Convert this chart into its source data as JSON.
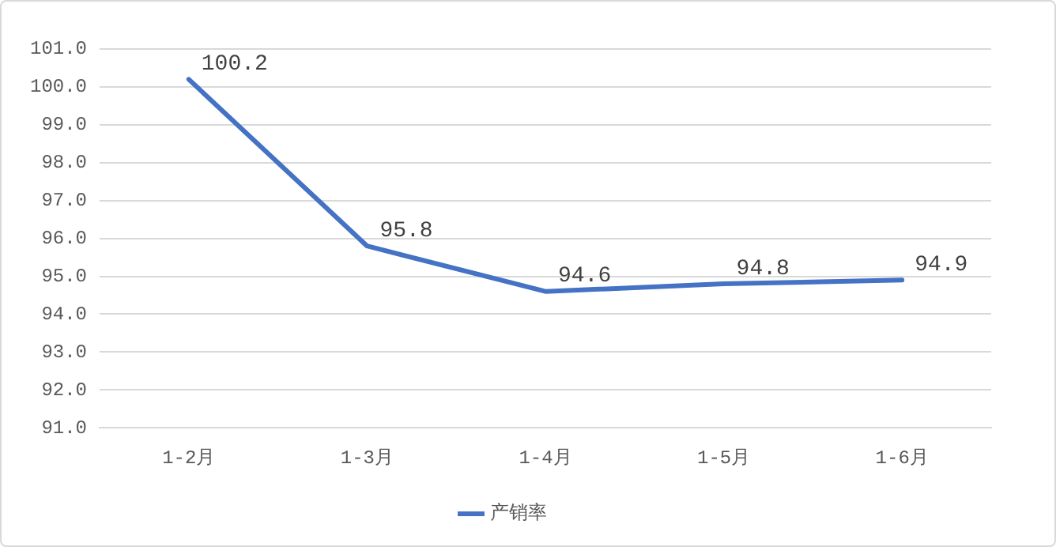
{
  "chart_data": {
    "type": "line",
    "categories": [
      "1-2月",
      "1-3月",
      "1-4月",
      "1-5月",
      "1-6月"
    ],
    "series": [
      {
        "name": "产销率",
        "color": "#4472c4",
        "values": [
          100.2,
          95.8,
          94.6,
          94.8,
          94.9
        ]
      }
    ],
    "ylim": [
      91,
      101
    ],
    "yticks": [
      {
        "value": 91,
        "label": "91.0"
      },
      {
        "value": 92,
        "label": "92.0"
      },
      {
        "value": 93,
        "label": "93.0"
      },
      {
        "value": 94,
        "label": "94.0"
      },
      {
        "value": 95,
        "label": "95.0"
      },
      {
        "value": 96,
        "label": "96.0"
      },
      {
        "value": 97,
        "label": "97.0"
      },
      {
        "value": 98,
        "label": "98.0"
      },
      {
        "value": 99,
        "label": "99.0"
      },
      {
        "value": 100,
        "label": "100.0"
      },
      {
        "value": 101,
        "label": "101.0"
      }
    ],
    "grid": "y",
    "legend": "bottom",
    "marker": "none",
    "line_style": "solid",
    "data_labels": true
  }
}
